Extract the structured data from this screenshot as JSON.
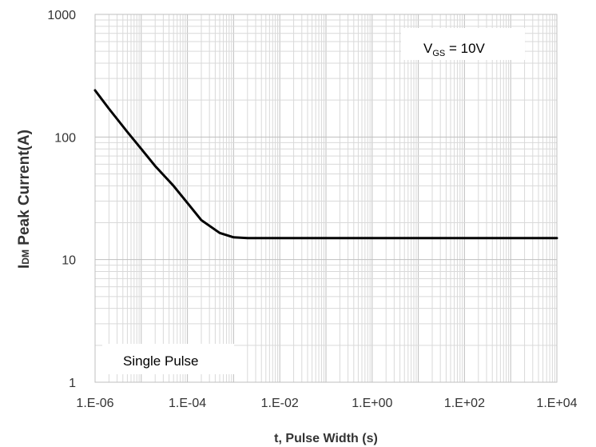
{
  "chart_data": {
    "type": "line",
    "xscale": "log",
    "yscale": "log",
    "xlim": [
      1e-06,
      10000.0
    ],
    "ylim": [
      1,
      1000
    ],
    "grid": true,
    "x_tick_labels": [
      "1.E-06",
      "1.E-04",
      "1.E-02",
      "1.E+00",
      "1.E+02",
      "1.E+04"
    ],
    "y_tick_labels": [
      "1",
      "10",
      "100",
      "1000"
    ],
    "xlabel": "t, Pulse Width (s)",
    "ylabel": {
      "prefix": "I",
      "subscript": "DM",
      "rest": " Peak Current(A)"
    },
    "annotations": {
      "vgs": {
        "label": "V",
        "subscript": "GS",
        "rest": " = 10V"
      },
      "pulse": "Single Pulse"
    },
    "series": [
      {
        "x": [
          1e-06,
          2e-06,
          5e-06,
          1e-05,
          2e-05,
          5e-05,
          0.0001,
          0.0002,
          0.0005,
          0.001,
          0.002,
          0.005,
          0.01,
          0.1,
          1,
          10,
          100,
          1000,
          10000
        ],
        "y": [
          240,
          170,
          110,
          80,
          58,
          40,
          29,
          21,
          16.5,
          15.2,
          15,
          15,
          15,
          15,
          15,
          15,
          15,
          15,
          15
        ]
      }
    ],
    "colors": {
      "line": "#000000",
      "grid": "#d9d9d9",
      "axis": "#bfbfbf"
    }
  }
}
